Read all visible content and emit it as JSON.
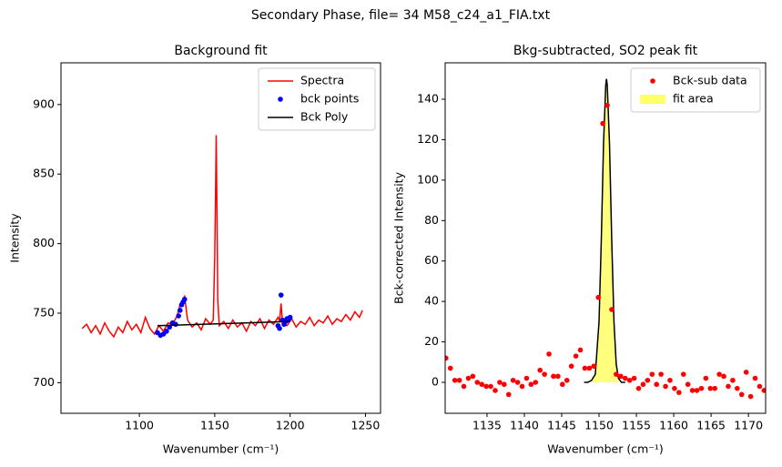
{
  "title": "Secondary Phase, file= 34 M58_c24_a1_FIA.txt",
  "chart_data": [
    {
      "type": "line",
      "title": "Background fit",
      "xlabel": "Wavenumber (cm⁻¹)",
      "ylabel": "Intensity",
      "xlim": [
        1048,
        1260
      ],
      "ylim": [
        678,
        930
      ],
      "xticks": [
        1100,
        1150,
        1200,
        1250
      ],
      "yticks": [
        700,
        750,
        800,
        850,
        900
      ],
      "legend": "upper right",
      "series": [
        {
          "name": "Spectra",
          "type": "line",
          "color": "#ff0000",
          "x": [
            1062,
            1065,
            1068,
            1071,
            1074,
            1077,
            1080,
            1083,
            1086,
            1089,
            1092,
            1095,
            1098,
            1101,
            1104,
            1107,
            1110,
            1113,
            1116,
            1119,
            1122,
            1125,
            1127,
            1129,
            1130,
            1132,
            1135,
            1138,
            1141,
            1144,
            1147,
            1149,
            1150,
            1151,
            1152,
            1153,
            1156,
            1159,
            1162,
            1165,
            1168,
            1171,
            1174,
            1177,
            1180,
            1183,
            1186,
            1189,
            1192,
            1193,
            1194,
            1195,
            1198,
            1201,
            1204,
            1207,
            1210,
            1213,
            1216,
            1219,
            1222,
            1225,
            1228,
            1231,
            1234,
            1237,
            1240,
            1243,
            1246,
            1248
          ],
          "values": [
            739,
            742,
            736,
            741,
            735,
            743,
            737,
            733,
            740,
            736,
            744,
            738,
            742,
            736,
            747,
            739,
            735,
            741,
            737,
            743,
            742,
            748,
            756,
            760,
            762,
            745,
            740,
            743,
            738,
            746,
            742,
            745,
            790,
            878,
            760,
            741,
            744,
            739,
            745,
            740,
            743,
            737,
            744,
            741,
            746,
            739,
            745,
            742,
            747,
            744,
            757,
            743,
            741,
            746,
            740,
            744,
            742,
            747,
            741,
            745,
            743,
            748,
            742,
            746,
            744,
            749,
            745,
            751,
            747,
            752
          ]
        },
        {
          "name": "bck points",
          "type": "scatter",
          "color": "#0000ff",
          "x": [
            1112,
            1114,
            1116,
            1118,
            1120,
            1122,
            1124,
            1126,
            1127,
            1128,
            1129,
            1130,
            1192,
            1193,
            1194,
            1195,
            1196,
            1197,
            1198,
            1199,
            1200
          ],
          "values": [
            736,
            734,
            735,
            737,
            740,
            743,
            742,
            748,
            752,
            756,
            758,
            760,
            741,
            739,
            763,
            745,
            742,
            744,
            746,
            745,
            747
          ]
        },
        {
          "name": "Bck Poly",
          "type": "line",
          "color": "#000000",
          "x": [
            1112,
            1156,
            1200
          ],
          "values": [
            741,
            742.5,
            744
          ]
        }
      ]
    },
    {
      "type": "scatter",
      "title": "Bkg-subtracted, SO2 peak fit",
      "xlabel": "Wavenumber (cm⁻¹)",
      "ylabel": "Bck-corrected Intensity",
      "xlim": [
        1129.4,
        1172.3
      ],
      "ylim": [
        -15.3,
        158
      ],
      "xticks": [
        1135,
        1140,
        1145,
        1150,
        1155,
        1160,
        1165,
        1170
      ],
      "yticks": [
        0,
        20,
        40,
        60,
        80,
        100,
        120,
        140
      ],
      "legend": "upper right",
      "series": [
        {
          "name": "fit area",
          "type": "area",
          "color": "#ffff66",
          "x": [
            1149.0,
            1149.5,
            1150.0,
            1150.3,
            1150.6,
            1150.9,
            1151.0,
            1151.1,
            1151.4,
            1151.7,
            1152.0,
            1152.3,
            1152.6
          ],
          "values": [
            1,
            4,
            30,
            70,
            118,
            147,
            150,
            147,
            118,
            70,
            30,
            9,
            2
          ]
        },
        {
          "type": "line",
          "color": "#000000",
          "x": [
            1148.0,
            1148.5,
            1149.0,
            1149.5,
            1150.0,
            1150.3,
            1150.6,
            1150.9,
            1151.0,
            1151.1,
            1151.4,
            1151.7,
            1152.0,
            1152.3,
            1152.6,
            1153.0,
            1153.5
          ],
          "values": [
            0,
            0,
            1,
            4,
            30,
            70,
            118,
            147,
            150,
            147,
            118,
            70,
            30,
            9,
            2,
            0,
            0
          ]
        },
        {
          "name": "Bck-sub data",
          "type": "scatter",
          "color": "#ff0000",
          "x": [
            1129.5,
            1130.1,
            1130.7,
            1131.3,
            1131.9,
            1132.5,
            1133.1,
            1133.7,
            1134.3,
            1134.9,
            1135.5,
            1136.1,
            1136.7,
            1137.3,
            1137.9,
            1138.5,
            1139.1,
            1139.7,
            1140.3,
            1140.9,
            1141.5,
            1142.1,
            1142.7,
            1143.3,
            1143.9,
            1144.5,
            1145.1,
            1145.7,
            1146.3,
            1146.9,
            1147.5,
            1148.1,
            1148.7,
            1149.3,
            1149.9,
            1150.5,
            1151.1,
            1151.7,
            1152.3,
            1152.9,
            1153.5,
            1154.1,
            1154.7,
            1155.3,
            1155.9,
            1156.5,
            1157.1,
            1157.7,
            1158.3,
            1158.9,
            1159.5,
            1160.1,
            1160.7,
            1161.3,
            1161.9,
            1162.5,
            1163.1,
            1163.7,
            1164.3,
            1164.9,
            1165.5,
            1166.1,
            1166.7,
            1167.3,
            1167.9,
            1168.5,
            1169.1,
            1169.7,
            1170.3,
            1170.9,
            1171.5,
            1172.1
          ],
          "values": [
            12,
            7,
            1,
            1,
            -2,
            2,
            3,
            0,
            -1,
            -2,
            -2,
            -4,
            0,
            -1,
            -6,
            1,
            0,
            -2,
            2,
            -1,
            0,
            6,
            4,
            14,
            3,
            3,
            -1,
            1,
            8,
            13,
            16,
            7,
            7,
            8,
            42,
            128,
            137,
            36,
            4,
            3,
            2,
            1,
            2,
            -3,
            -1,
            1,
            4,
            -1,
            4,
            -2,
            1,
            -3,
            -5,
            4,
            -1,
            -4,
            -4,
            -3,
            2,
            -3,
            -3,
            4,
            3,
            -2,
            1,
            -3,
            -6,
            5,
            -7,
            2,
            -2,
            -4
          ]
        }
      ]
    }
  ]
}
